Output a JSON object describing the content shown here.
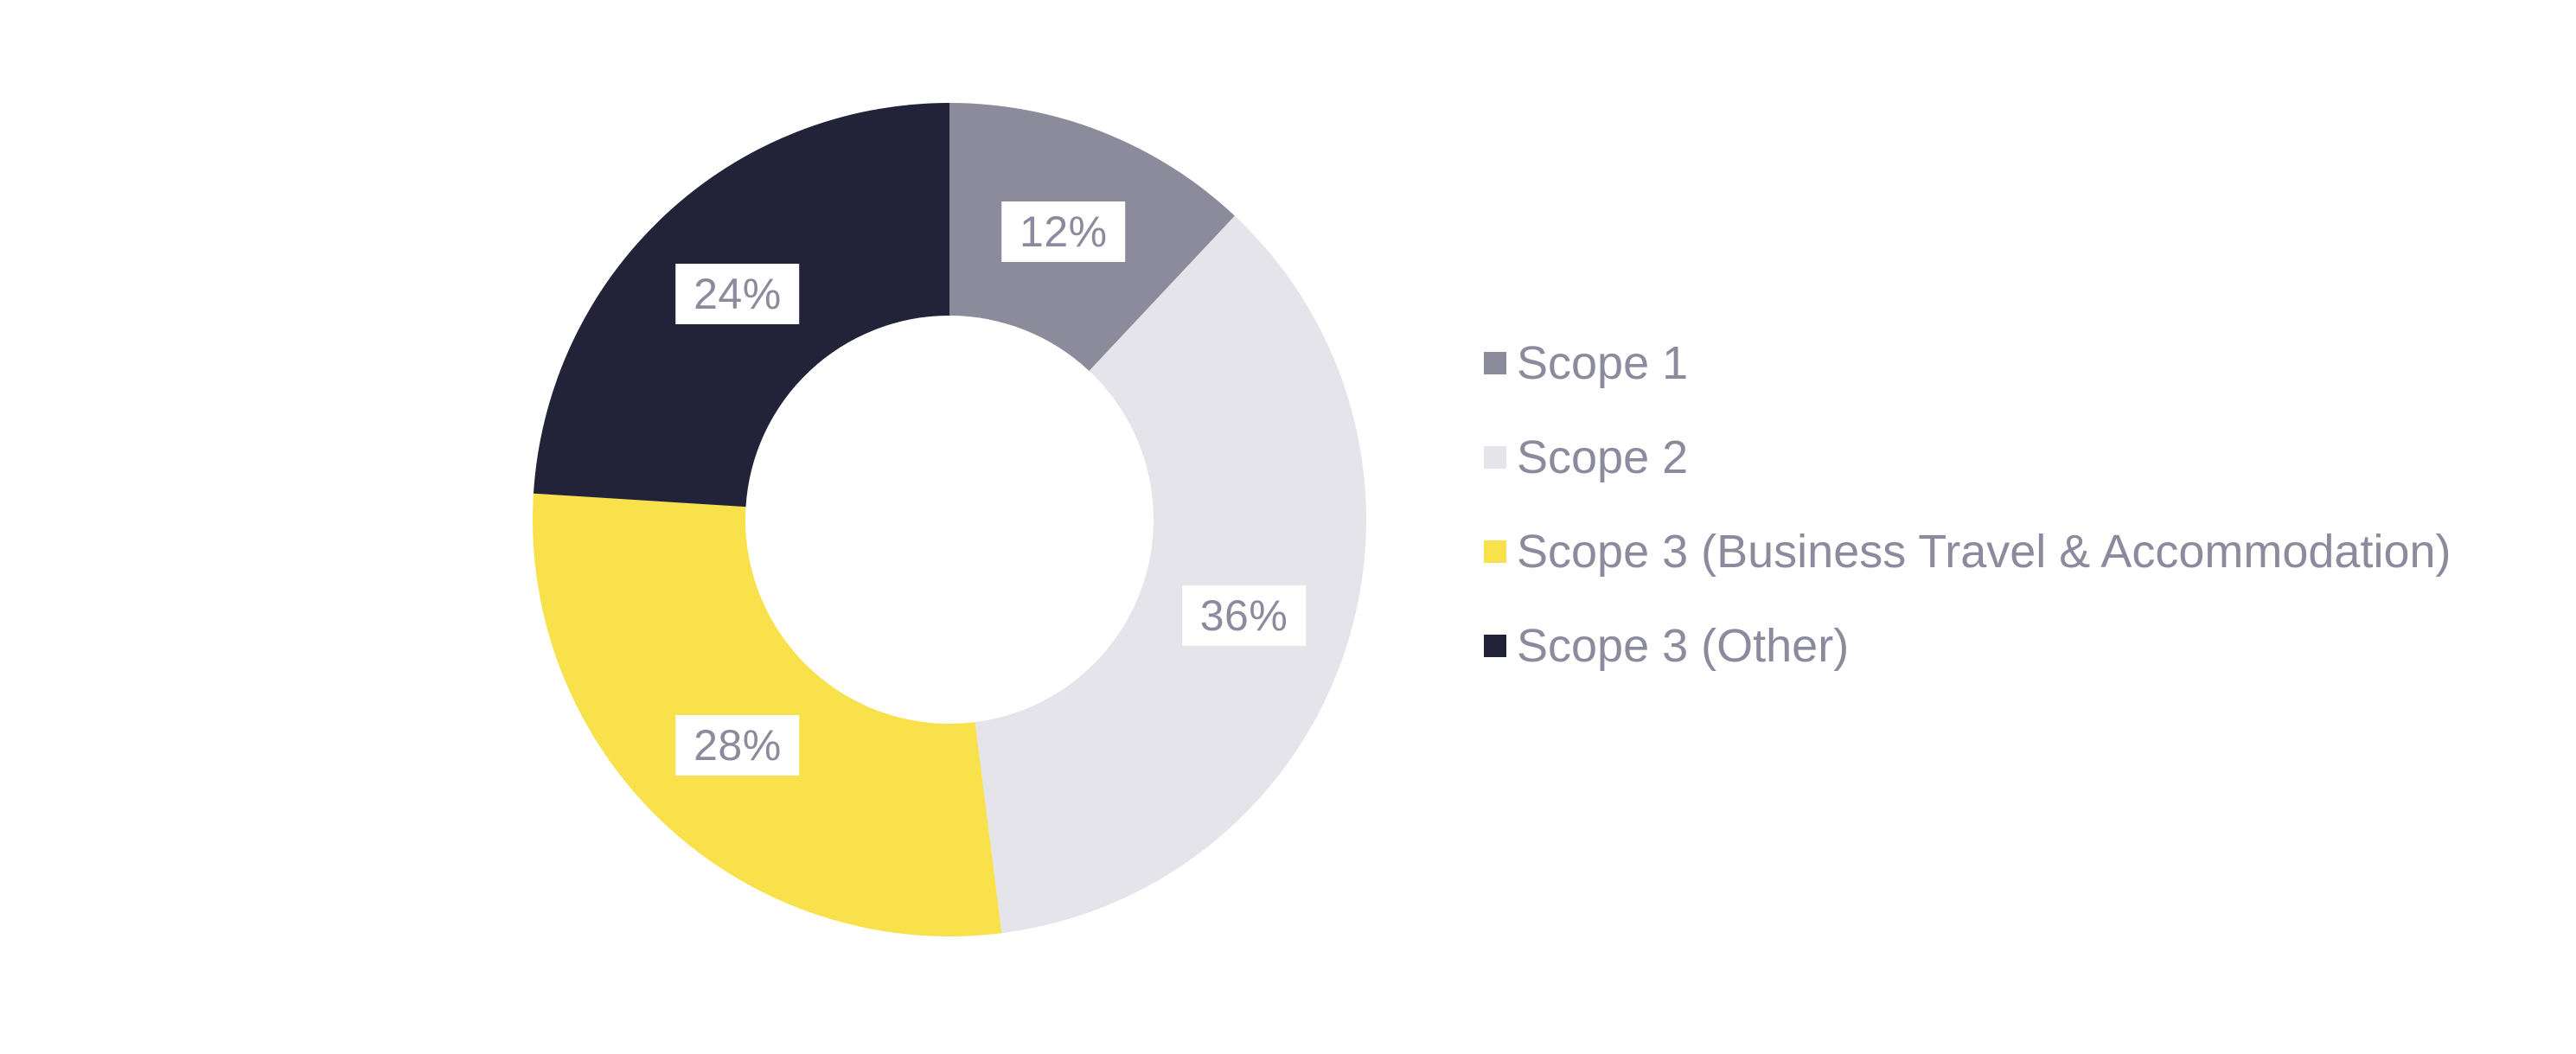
{
  "chart_data": {
    "type": "pie",
    "subtype": "donut",
    "title": "",
    "categories": [
      "Scope 1",
      "Scope 2",
      "Scope 3 (Business Travel & Accommodation)",
      "Scope 3 (Other)"
    ],
    "values": [
      12,
      36,
      28,
      24
    ],
    "value_unit": "%",
    "slice_labels": [
      "12%",
      "36%",
      "28%",
      "24%"
    ],
    "colors": [
      "#8B8B9C",
      "#E4E4EA",
      "#F8E14B",
      "#222338"
    ],
    "start_angle_deg": 0,
    "direction": "clockwise",
    "legend_position": "right",
    "label_text_color": "#8B8B9D",
    "label_box_color": "#FFFFFF",
    "background_color": "#FFFFFF"
  },
  "legend": {
    "text_color": "#8B8B9D",
    "items": [
      {
        "label": "Scope 1",
        "color": "#8B8B9C"
      },
      {
        "label": "Scope 2",
        "color": "#E4E4EA"
      },
      {
        "label": "Scope 3 (Business Travel & Accommodation)",
        "color": "#F8E14B"
      },
      {
        "label": "Scope 3 (Other)",
        "color": "#222338"
      }
    ]
  }
}
